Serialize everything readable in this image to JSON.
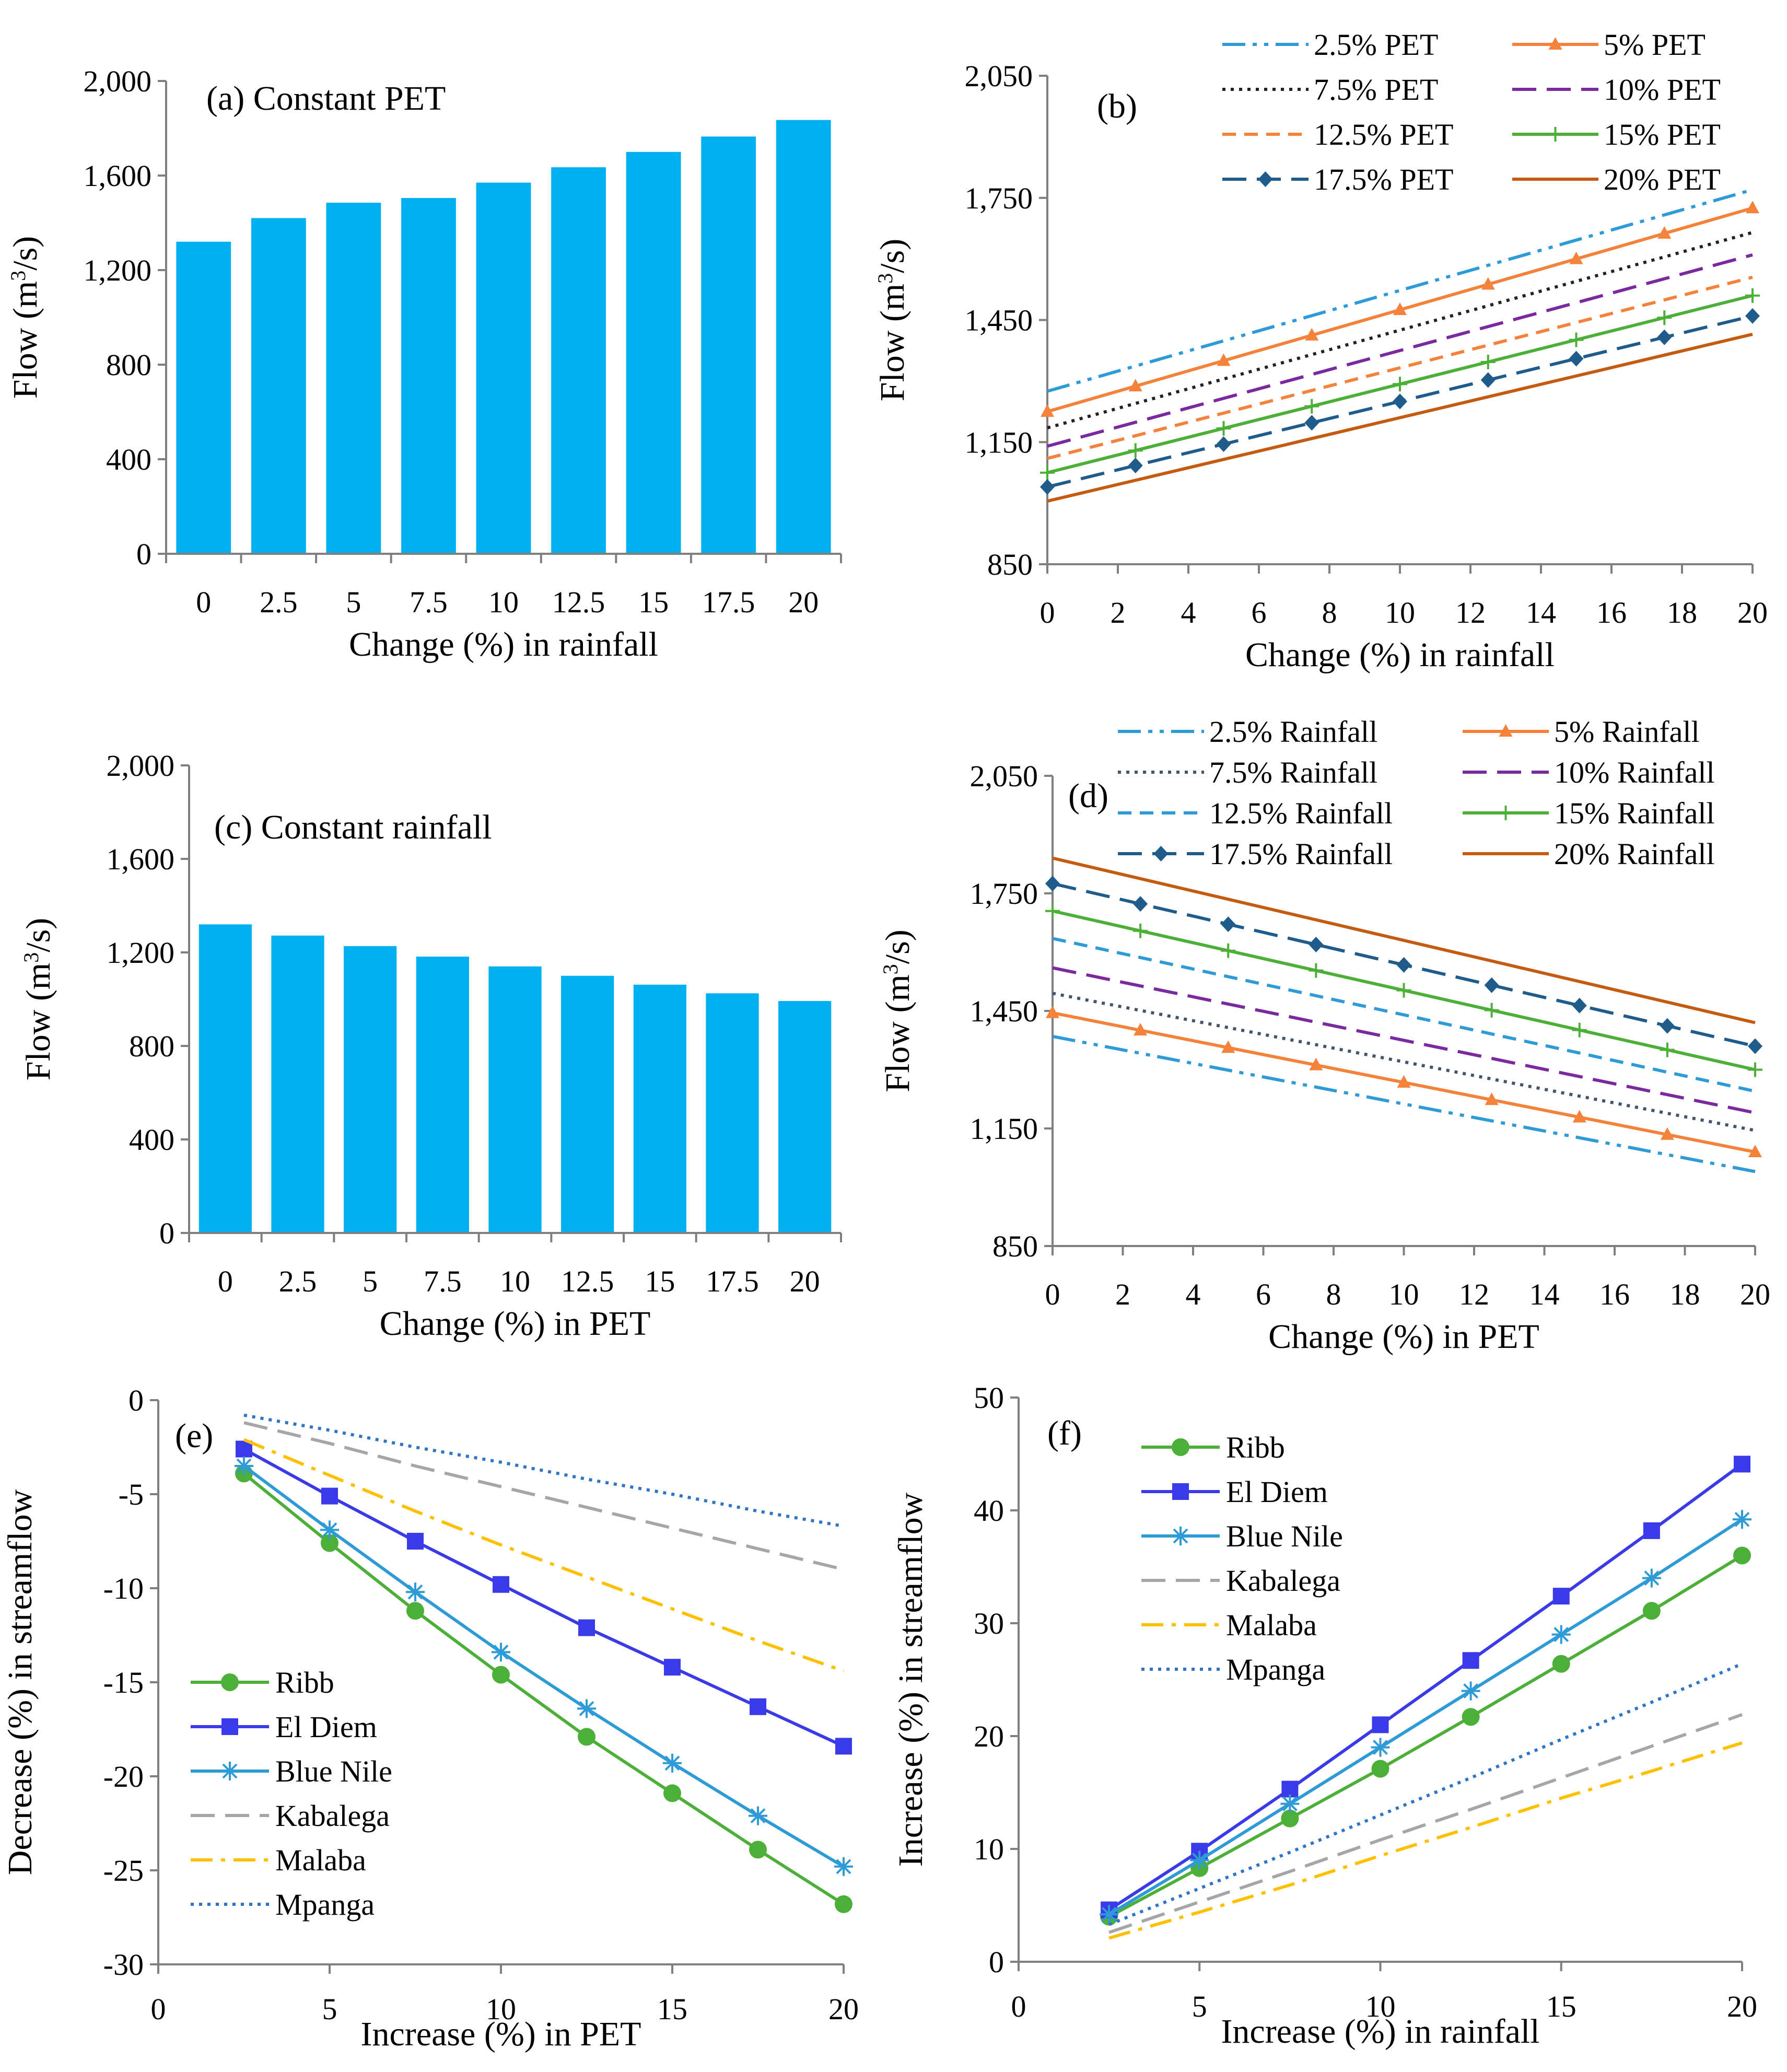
{
  "chart_data": [
    {
      "id": "a",
      "type": "bar",
      "annotation": "(a) Constant PET",
      "xlabel": "Change (%) in rainfall",
      "ylabel": "Flow (m3/s)",
      "categories": [
        "0",
        "2.5",
        "5",
        "7.5",
        "10",
        "12.5",
        "15",
        "17.5",
        "20"
      ],
      "values": [
        1320,
        1420,
        1485,
        1505,
        1570,
        1635,
        1700,
        1765,
        1835
      ],
      "ylim": [
        0,
        2000
      ],
      "yticks": [
        "0",
        "400",
        "800",
        "1,200",
        "1,600",
        "2,000"
      ],
      "color": "#00B0F0"
    },
    {
      "id": "b",
      "type": "line",
      "annotation": "(b)",
      "xlabel": "Change (%) in rainfall",
      "ylabel": "Flow (m3/s)",
      "xlim": [
        0,
        20
      ],
      "ylim": [
        850,
        2050
      ],
      "xticks": [
        "0",
        "2",
        "4",
        "6",
        "8",
        "10",
        "12",
        "14",
        "16",
        "18",
        "20"
      ],
      "yticks": [
        "850",
        "1,150",
        "1,450",
        "1,750",
        "2,050"
      ],
      "x": [
        0,
        2.5,
        5,
        7.5,
        10,
        12.5,
        15,
        17.5,
        20
      ],
      "series": [
        {
          "name": "2.5% PET",
          "start": 1275,
          "end": 1770,
          "color": "#2E9BD6",
          "dash": "dashdotdot",
          "marker": "none"
        },
        {
          "name": "5% PET",
          "start": 1225,
          "end": 1725,
          "color": "#F5823A",
          "dash": "solid",
          "marker": "triangle"
        },
        {
          "name": "7.5% PET",
          "start": 1185,
          "end": 1665,
          "color": "#222222",
          "dash": "dot",
          "marker": "none"
        },
        {
          "name": "10% PET",
          "start": 1140,
          "end": 1610,
          "color": "#7A2A9E",
          "dash": "longdash",
          "marker": "none"
        },
        {
          "name": "12.5% PET",
          "start": 1110,
          "end": 1555,
          "color": "#F5823A",
          "dash": "dash",
          "marker": "none"
        },
        {
          "name": "15% PET",
          "start": 1075,
          "end": 1510,
          "color": "#4CAF37",
          "dash": "solid",
          "marker": "plus"
        },
        {
          "name": "17.5% PET",
          "start": 1040,
          "end": 1460,
          "color": "#1F5C8B",
          "dash": "longdash",
          "marker": "diamond"
        },
        {
          "name": "20% PET",
          "start": 1005,
          "end": 1415,
          "color": "#C55A11",
          "dash": "solid",
          "marker": "none"
        }
      ]
    },
    {
      "id": "c",
      "type": "bar",
      "annotation": "(c) Constant rainfall",
      "xlabel": "Change (%) in PET",
      "ylabel": "Flow (m3/s)",
      "categories": [
        "0",
        "2.5",
        "5",
        "7.5",
        "10",
        "12.5",
        "15",
        "17.5",
        "20"
      ],
      "values": [
        1320,
        1272,
        1227,
        1182,
        1140,
        1100,
        1062,
        1025,
        992
      ],
      "ylim": [
        0,
        2000
      ],
      "yticks": [
        "0",
        "400",
        "800",
        "1,200",
        "1,600",
        "2,000"
      ],
      "color": "#00B0F0"
    },
    {
      "id": "d",
      "type": "line",
      "annotation": "(d)",
      "xlabel": "Change (%) in PET",
      "ylabel": "Flow (m3/s)",
      "xlim": [
        0,
        20
      ],
      "ylim": [
        850,
        2050
      ],
      "xticks": [
        "0",
        "2",
        "4",
        "6",
        "8",
        "10",
        "12",
        "14",
        "16",
        "18",
        "20"
      ],
      "yticks": [
        "850",
        "1,150",
        "1,450",
        "1,750",
        "2,050"
      ],
      "x": [
        0,
        2.5,
        5,
        7.5,
        10,
        12.5,
        15,
        17.5,
        20
      ],
      "series": [
        {
          "name": "2.5% Rainfall",
          "start": 1385,
          "end": 1040,
          "color": "#2E9BD6",
          "dash": "dashdotdot",
          "marker": "none"
        },
        {
          "name": "5%  Rainfall",
          "start": 1445,
          "end": 1090,
          "color": "#F5823A",
          "dash": "solid",
          "marker": "triangle"
        },
        {
          "name": "7.5% Rainfall",
          "start": 1495,
          "end": 1145,
          "color": "#44546A",
          "dash": "dot",
          "marker": "none"
        },
        {
          "name": "10%  Rainfall",
          "start": 1560,
          "end": 1190,
          "color": "#7A2A9E",
          "dash": "longdash",
          "marker": "none"
        },
        {
          "name": "12.5%  Rainfall",
          "start": 1635,
          "end": 1245,
          "color": "#2E9BD6",
          "dash": "dash",
          "marker": "none"
        },
        {
          "name": "15% Rainfall",
          "start": 1705,
          "end": 1300,
          "color": "#4CAF37",
          "dash": "solid",
          "marker": "plus"
        },
        {
          "name": "17.5%  Rainfall",
          "start": 1775,
          "end": 1360,
          "color": "#1F5C8B",
          "dash": "longdash",
          "marker": "diamond"
        },
        {
          "name": "20%  Rainfall",
          "start": 1840,
          "end": 1420,
          "color": "#C55A11",
          "dash": "solid",
          "marker": "none"
        }
      ]
    },
    {
      "id": "e",
      "type": "line",
      "annotation": "(e)",
      "xlabel": "Increase (%) in PET",
      "ylabel": "Decrease (%) in streamflow",
      "xlim": [
        0,
        20
      ],
      "ylim": [
        -30,
        0
      ],
      "xticks": [
        "0",
        "5",
        "10",
        "15",
        "20"
      ],
      "yticks": [
        "-30",
        "-25",
        "-20",
        "-15",
        "-10",
        "-5",
        "0"
      ],
      "x": [
        2.5,
        5,
        7.5,
        10,
        12.5,
        15,
        17.5,
        20
      ],
      "series": [
        {
          "name": "Ribb",
          "values": [
            -3.9,
            -7.6,
            -11.2,
            -14.6,
            -17.9,
            -20.9,
            -23.9,
            -26.8
          ],
          "color": "#4CAF37",
          "dash": "solid",
          "marker": "circle"
        },
        {
          "name": "El Diem",
          "values": [
            -2.6,
            -5.1,
            -7.5,
            -9.8,
            -12.1,
            -14.2,
            -16.3,
            -18.4
          ],
          "color": "#3A3AE8",
          "dash": "solid",
          "marker": "square"
        },
        {
          "name": "Blue Nile",
          "values": [
            -3.5,
            -6.9,
            -10.2,
            -13.4,
            -16.4,
            -19.3,
            -22.1,
            -24.8
          ],
          "color": "#2E9BD6",
          "dash": "solid",
          "marker": "star"
        },
        {
          "name": "Kabalega",
          "values": [
            -1.2,
            -2.3,
            -3.5,
            -4.6,
            -5.7,
            -6.8,
            -7.9,
            -9.0
          ],
          "color": "#A6A6A6",
          "dash": "longdash",
          "marker": "none"
        },
        {
          "name": "Malaba",
          "values": [
            -2.1,
            -4.0,
            -5.9,
            -7.7,
            -9.4,
            -11.1,
            -12.8,
            -14.4
          ],
          "color": "#FFC000",
          "dash": "dashdot",
          "marker": "none"
        },
        {
          "name": "Mpanga",
          "values": [
            -0.8,
            -1.6,
            -2.5,
            -3.3,
            -4.2,
            -5.0,
            -5.9,
            -6.7
          ],
          "color": "#2E75C8",
          "dash": "dot",
          "marker": "none"
        }
      ]
    },
    {
      "id": "f",
      "type": "line",
      "annotation": "(f)",
      "xlabel": "Increase (%) in rainfall",
      "ylabel": "Increase (%) in streamflow",
      "xlim": [
        0,
        20
      ],
      "ylim": [
        0,
        50
      ],
      "xticks": [
        "0",
        "5",
        "10",
        "15",
        "20"
      ],
      "yticks": [
        "0",
        "10",
        "20",
        "30",
        "40",
        "50"
      ],
      "x": [
        2.5,
        5,
        7.5,
        10,
        12.5,
        15,
        17.5,
        20
      ],
      "series": [
        {
          "name": "Ribb",
          "values": [
            4.0,
            8.3,
            12.7,
            17.1,
            21.7,
            26.4,
            31.1,
            36.0
          ],
          "color": "#4CAF37",
          "dash": "solid",
          "marker": "circle"
        },
        {
          "name": "El Diem",
          "values": [
            4.6,
            9.8,
            15.3,
            21.0,
            26.7,
            32.4,
            38.2,
            44.1
          ],
          "color": "#3A3AE8",
          "dash": "solid",
          "marker": "square"
        },
        {
          "name": "Blue Nile",
          "values": [
            4.2,
            9.0,
            14.0,
            19.0,
            24.0,
            29.0,
            34.0,
            39.2
          ],
          "color": "#2E9BD6",
          "dash": "solid",
          "marker": "star"
        },
        {
          "name": "Kabalega",
          "values": [
            2.6,
            5.3,
            8.0,
            10.8,
            13.5,
            16.3,
            19.1,
            21.9
          ],
          "color": "#A6A6A6",
          "dash": "longdash",
          "marker": "none"
        },
        {
          "name": "Malaba",
          "values": [
            2.1,
            4.4,
            6.8,
            9.4,
            11.9,
            14.5,
            16.9,
            19.4
          ],
          "color": "#FFC000",
          "dash": "dashdot",
          "marker": "none"
        },
        {
          "name": "Mpanga",
          "values": [
            3.3,
            6.5,
            9.7,
            13.0,
            16.3,
            19.7,
            23.0,
            26.4
          ],
          "color": "#2E75C8",
          "dash": "dot",
          "marker": "none"
        }
      ]
    }
  ]
}
